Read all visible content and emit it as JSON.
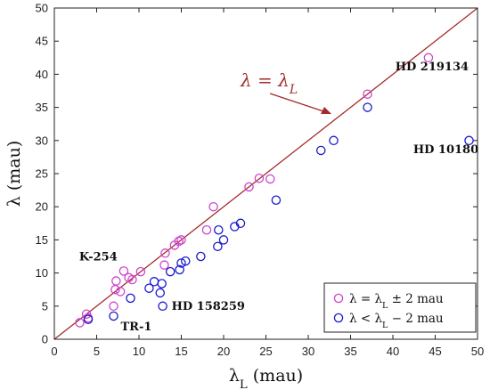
{
  "chart_data": {
    "type": "scatter",
    "xlabel": "λ_L (mau)",
    "ylabel": "λ (mau)",
    "xlim": [
      0,
      50
    ],
    "ylim": [
      0,
      50
    ],
    "xticks": [
      0,
      5,
      10,
      15,
      20,
      25,
      30,
      35,
      40,
      45,
      50
    ],
    "yticks": [
      0,
      5,
      10,
      15,
      20,
      25,
      30,
      35,
      40,
      45,
      50
    ],
    "grid": false,
    "legend_position": "bottom-right",
    "reference_line": {
      "label": "λ = λ_L",
      "color": "#a52a2a",
      "from": [
        0,
        0
      ],
      "to": [
        50,
        50
      ]
    },
    "series": [
      {
        "name": "λ = λ_L ± 2 mau",
        "color": "#cc44cc",
        "points": [
          [
            3,
            2.5
          ],
          [
            3.8,
            3.8
          ],
          [
            4,
            3.2
          ],
          [
            7,
            5
          ],
          [
            7.2,
            7.5
          ],
          [
            7.3,
            8.8
          ],
          [
            7.8,
            7.2
          ],
          [
            8.2,
            10.3
          ],
          [
            8.8,
            9.3
          ],
          [
            9.2,
            9
          ],
          [
            10.2,
            10.2
          ],
          [
            13,
            11.2
          ],
          [
            13.1,
            13
          ],
          [
            14.2,
            14.2
          ],
          [
            14.7,
            14.8
          ],
          [
            15,
            15
          ],
          [
            18,
            16.5
          ],
          [
            18.8,
            20
          ],
          [
            23,
            23
          ],
          [
            24.2,
            24.3
          ],
          [
            25.5,
            24.2
          ],
          [
            37,
            37
          ],
          [
            44.2,
            42.5
          ]
        ]
      },
      {
        "name": "λ < λ_L − 2 mau",
        "color": "#1a1acc",
        "points": [
          [
            4,
            3
          ],
          [
            7,
            3.5
          ],
          [
            9,
            6.2
          ],
          [
            11.2,
            7.7
          ],
          [
            11.8,
            8.7
          ],
          [
            12.5,
            7
          ],
          [
            12.7,
            8.4
          ],
          [
            12.8,
            5
          ],
          [
            13.7,
            10.2
          ],
          [
            14.8,
            10.5
          ],
          [
            15,
            11.5
          ],
          [
            15.5,
            11.8
          ],
          [
            17.3,
            12.5
          ],
          [
            19.3,
            14
          ],
          [
            19.4,
            16.5
          ],
          [
            20,
            15
          ],
          [
            21.3,
            17
          ],
          [
            22,
            17.5
          ],
          [
            26.2,
            21
          ],
          [
            31.5,
            28.5
          ],
          [
            33,
            30
          ],
          [
            37,
            35
          ],
          [
            49,
            30
          ]
        ]
      }
    ],
    "annotations": [
      {
        "text": "HD 219134",
        "x": 44.2,
        "y": 42.5
      },
      {
        "text": "HD 10180",
        "x": 49,
        "y": 30
      },
      {
        "text": "K-254",
        "x": 8.2,
        "y": 10.3
      },
      {
        "text": "HD 158259",
        "x": 12.8,
        "y": 5
      },
      {
        "text": "TR-1",
        "x": 7,
        "y": 3.5
      }
    ]
  }
}
